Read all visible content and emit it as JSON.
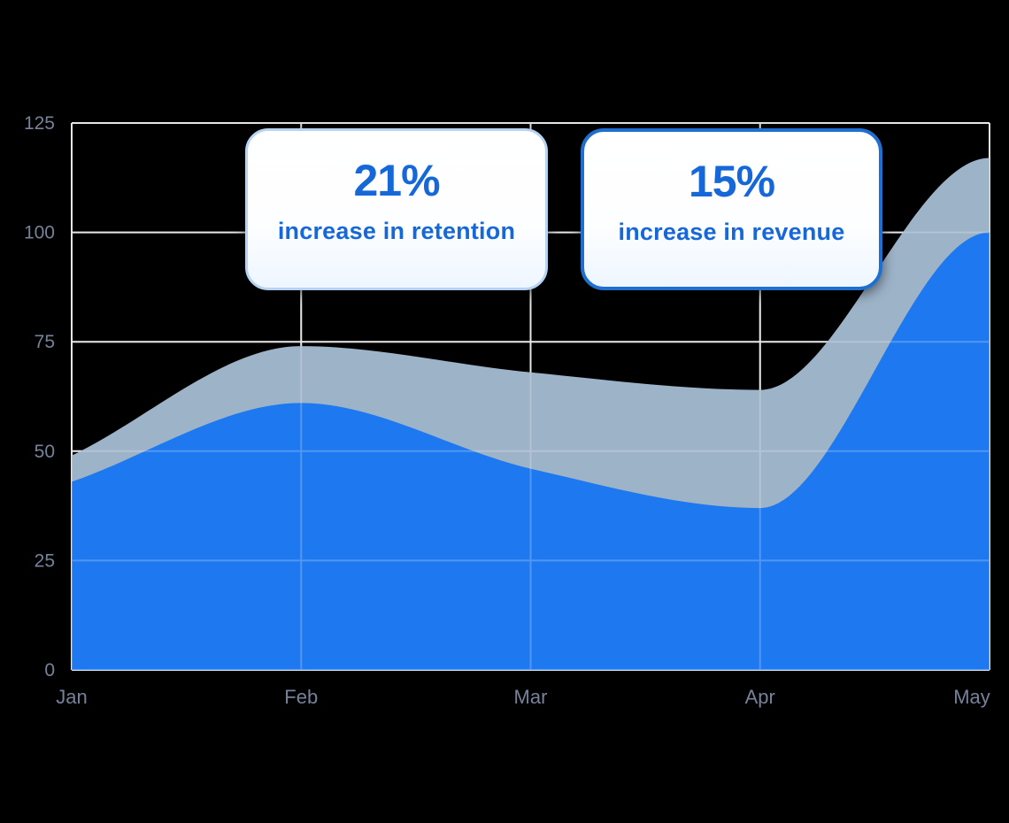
{
  "colors": {
    "background": "#000000",
    "area_blue": "#1e79f0",
    "area_gray": "#9db3c8",
    "grid": "#ffffff",
    "tick_label": "#76829a",
    "card_text": "#1668d9",
    "card_border_light": "#b7d3f2",
    "card_border_strong": "#1e6fd0",
    "card_bg": "#fdfeff"
  },
  "callouts": [
    {
      "value": "21%",
      "label": "increase in retention"
    },
    {
      "value": "15%",
      "label": "increase in revenue"
    }
  ],
  "chart_data": {
    "type": "area",
    "categories": [
      "Jan",
      "Feb",
      "Mar",
      "Apr",
      "May"
    ],
    "series": [
      {
        "name": "gray-area",
        "color": "#9db3c8",
        "values": [
          49,
          74,
          68,
          64,
          117
        ]
      },
      {
        "name": "blue-area",
        "color": "#1e79f0",
        "values": [
          43,
          61,
          46,
          37,
          100
        ]
      }
    ],
    "title": "",
    "xlabel": "",
    "ylabel": "",
    "ylim": [
      0,
      125
    ],
    "yticks": [
      0,
      25,
      50,
      75,
      100,
      125
    ],
    "grid": true,
    "legend": "none"
  }
}
